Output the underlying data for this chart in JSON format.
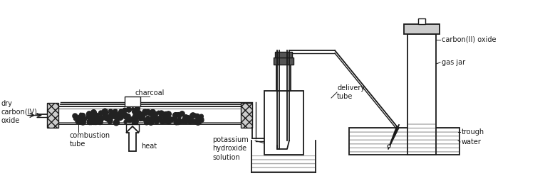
{
  "bg_color": "#ffffff",
  "line_color": "#1a1a1a",
  "fill_light": "#cccccc",
  "fill_dark": "#555555",
  "fill_charcoal": "#222222",
  "fill_water_hatch": "#dddddd",
  "labels": {
    "charcoal": "charcoal",
    "dry_carbon": "dry\ncarbon(IV)\noxide",
    "combustion_tube": "combustion\ntube",
    "heat": "heat",
    "potassium": "potassium\nhydroxide\nsolution",
    "delivery_tube": "delivery\ntube",
    "carbon_II": "carbon(II) oxide",
    "gas_jar": "gas jar",
    "trough": "trough",
    "water": "water"
  },
  "figsize": [
    7.58,
    2.48
  ],
  "dpi": 100
}
